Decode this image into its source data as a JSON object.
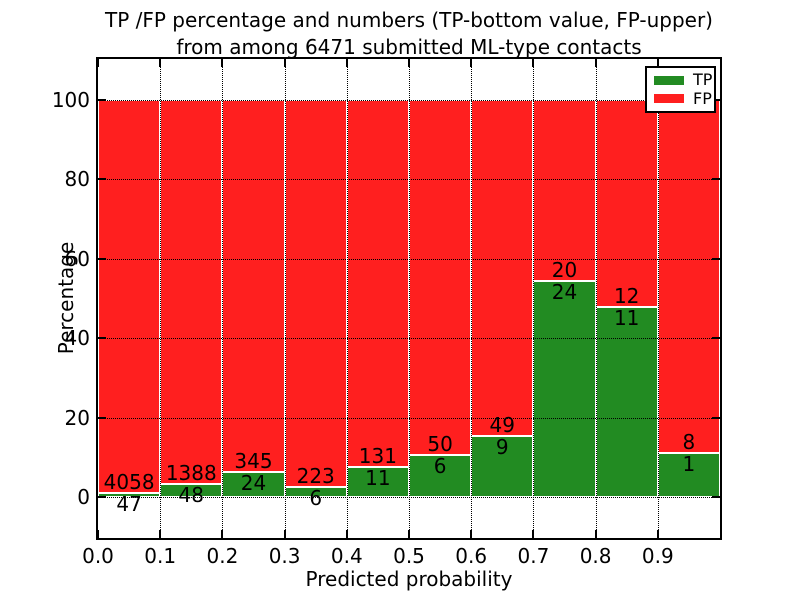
{
  "colors": {
    "tp_green": "#228B22",
    "fp_red": "#FF1F1F",
    "grid": "#000000",
    "bar_edge": "#FFFFFF",
    "text": "#000000",
    "background": "#FFFFFF"
  },
  "chart_data": {
    "type": "bar",
    "stacked": true,
    "title": "TP /FP percentage and numbers (TP-bottom value, FP-upper)",
    "subtitle": "from among 6471 submitted ML-type contacts",
    "xlabel": "Predicted probability",
    "ylabel": "Percentage",
    "total_contacts": 6471,
    "bin_width": 0.1,
    "bins_start": [
      0.0,
      0.1,
      0.2,
      0.3,
      0.4,
      0.5,
      0.6,
      0.7,
      0.8,
      0.9
    ],
    "x_tick_values": [
      0.0,
      0.1,
      0.2,
      0.3,
      0.4,
      0.5,
      0.6,
      0.7,
      0.8,
      0.9
    ],
    "x_tick_labels": [
      "0.0",
      "0.1",
      "0.2",
      "0.3",
      "0.4",
      "0.5",
      "0.6",
      "0.7",
      "0.8",
      "0.9"
    ],
    "y_tick_values": [
      0,
      20,
      40,
      60,
      80,
      100
    ],
    "y_tick_labels": [
      "0",
      "20",
      "40",
      "60",
      "80",
      "100"
    ],
    "xlim": [
      0.0,
      1.0
    ],
    "ylim": [
      -10.2,
      110.3
    ],
    "grid": true,
    "legend": {
      "position": "upper right",
      "entries": [
        {
          "label": "TP",
          "color": "#228B22"
        },
        {
          "label": "FP",
          "color": "#FF1F1F"
        }
      ]
    },
    "series": [
      {
        "name": "TP",
        "color": "#228B22",
        "counts": [
          47,
          48,
          24,
          6,
          11,
          6,
          9,
          24,
          11,
          1
        ],
        "pct": [
          1.145,
          3.343,
          6.504,
          2.62,
          7.746,
          10.714,
          15.517,
          54.545,
          47.826,
          11.111
        ]
      },
      {
        "name": "FP",
        "color": "#FF1F1F",
        "counts": [
          4058,
          1388,
          345,
          223,
          131,
          50,
          49,
          20,
          12,
          8
        ],
        "pct": [
          98.855,
          96.657,
          93.496,
          97.38,
          92.254,
          89.286,
          84.483,
          45.455,
          52.174,
          88.889
        ]
      }
    ]
  }
}
